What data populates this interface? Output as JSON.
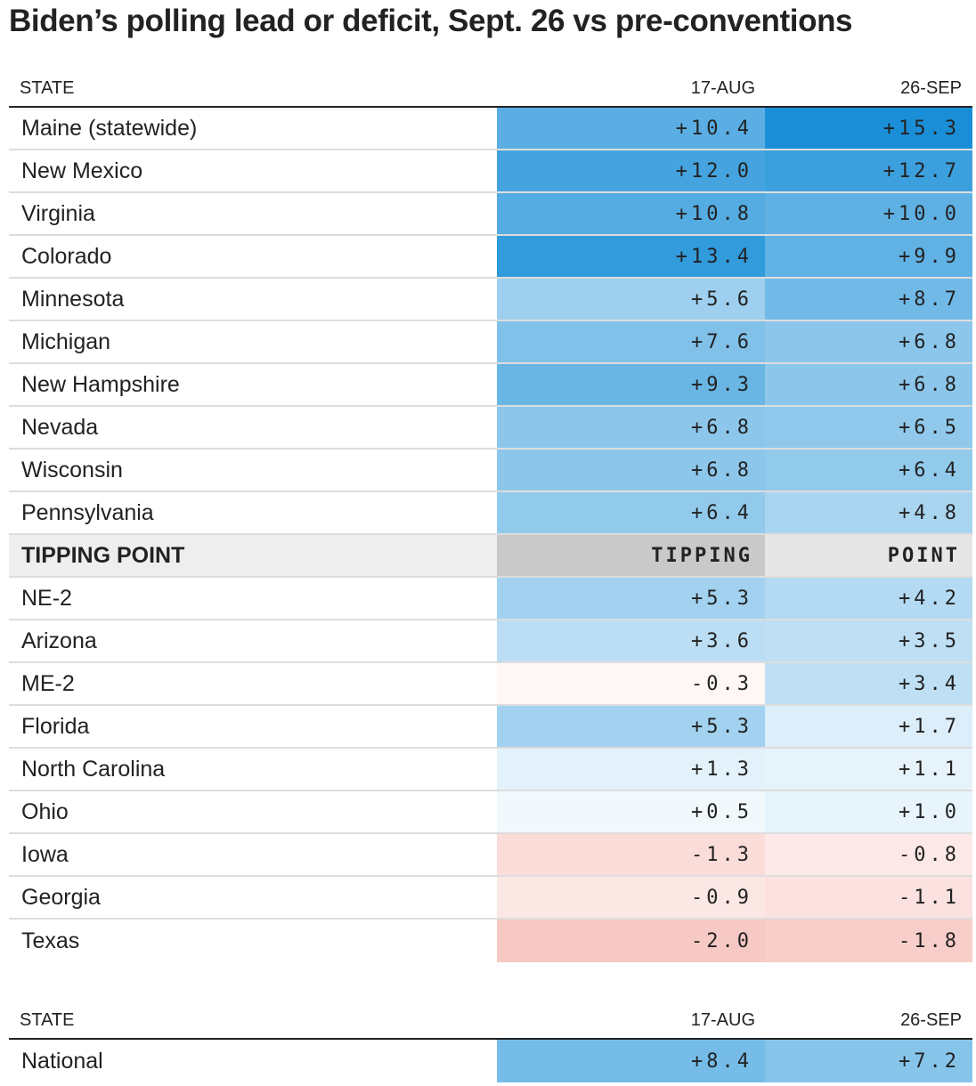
{
  "title": "Biden’s polling lead or deficit, Sept. 26 vs pre-conventions",
  "colors": {
    "positive_max": "#1a8fd8",
    "negative_max": "#f7c9c4",
    "tipping_bg": "#c9c9c9",
    "text": "#222222"
  },
  "headers": {
    "state": "STATE",
    "col_a": "17-AUG",
    "col_b": "26-SEP"
  },
  "states": [
    {
      "name": "Maine (statewide)",
      "a": "+10.4",
      "b": "+15.3"
    },
    {
      "name": "New Mexico",
      "a": "+12.0",
      "b": "+12.7"
    },
    {
      "name": "Virginia",
      "a": "+10.8",
      "b": "+10.0"
    },
    {
      "name": "Colorado",
      "a": "+13.4",
      "b": "+9.9"
    },
    {
      "name": "Minnesota",
      "a": "+5.6",
      "b": "+8.7"
    },
    {
      "name": "Michigan",
      "a": "+7.6",
      "b": "+6.8"
    },
    {
      "name": "New Hampshire",
      "a": "+9.3",
      "b": "+6.8"
    },
    {
      "name": "Nevada",
      "a": "+6.8",
      "b": "+6.5"
    },
    {
      "name": "Wisconsin",
      "a": "+6.8",
      "b": "+6.4"
    },
    {
      "name": "Pennsylvania",
      "a": "+6.4",
      "b": "+4.8"
    },
    {
      "name": "TIPPING POINT",
      "a": "TIPPING",
      "b": "POINT",
      "tipping": true
    },
    {
      "name": "NE-2",
      "a": "+5.3",
      "b": "+4.2"
    },
    {
      "name": "Arizona",
      "a": "+3.6",
      "b": "+3.5"
    },
    {
      "name": "ME-2",
      "a": "-0.3",
      "b": "+3.4"
    },
    {
      "name": "Florida",
      "a": "+5.3",
      "b": "+1.7"
    },
    {
      "name": "North Carolina",
      "a": "+1.3",
      "b": "+1.1"
    },
    {
      "name": "Ohio",
      "a": "+0.5",
      "b": "+1.0"
    },
    {
      "name": "Iowa",
      "a": "-1.3",
      "b": "-0.8"
    },
    {
      "name": "Georgia",
      "a": "-0.9",
      "b": "-1.1"
    },
    {
      "name": "Texas",
      "a": "-2.0",
      "b": "-1.8"
    }
  ],
  "national": [
    {
      "name": "National",
      "a": "+8.4",
      "b": "+7.2"
    }
  ],
  "chart_data": {
    "type": "table",
    "title": "Biden’s polling lead or deficit, Sept. 26 vs pre-conventions",
    "columns": [
      "STATE",
      "17-AUG",
      "26-SEP"
    ],
    "rows": [
      [
        "Maine (statewide)",
        10.4,
        15.3
      ],
      [
        "New Mexico",
        12.0,
        12.7
      ],
      [
        "Virginia",
        10.8,
        10.0
      ],
      [
        "Colorado",
        13.4,
        9.9
      ],
      [
        "Minnesota",
        5.6,
        8.7
      ],
      [
        "Michigan",
        7.6,
        6.8
      ],
      [
        "New Hampshire",
        9.3,
        6.8
      ],
      [
        "Nevada",
        6.8,
        6.5
      ],
      [
        "Wisconsin",
        6.8,
        6.4
      ],
      [
        "Pennsylvania",
        6.4,
        4.8
      ],
      [
        "NE-2",
        5.3,
        4.2
      ],
      [
        "Arizona",
        3.6,
        3.5
      ],
      [
        "ME-2",
        -0.3,
        3.4
      ],
      [
        "Florida",
        5.3,
        1.7
      ],
      [
        "North Carolina",
        1.3,
        1.1
      ],
      [
        "Ohio",
        0.5,
        1.0
      ],
      [
        "Iowa",
        -1.3,
        -0.8
      ],
      [
        "Georgia",
        -0.9,
        -1.1
      ],
      [
        "Texas",
        -2.0,
        -1.8
      ]
    ],
    "national": [
      "National",
      8.4,
      7.2
    ]
  }
}
